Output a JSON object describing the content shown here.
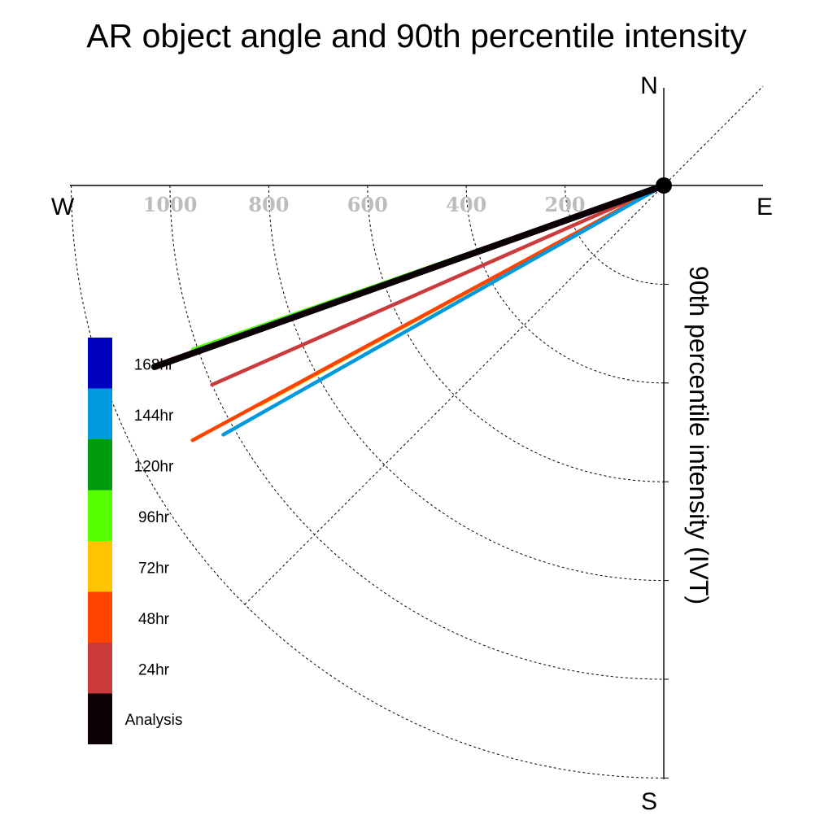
{
  "chart_data": {
    "type": "polar-quadrant",
    "title": "AR object angle and 90th percentile intensity",
    "radial_label": "90th percentile intensity (IVT)",
    "directions": {
      "north": "N",
      "south": "S",
      "east": "E",
      "west": "W"
    },
    "radial_ticks": [
      200,
      400,
      600,
      800,
      1000
    ],
    "radial_max": 1200,
    "grid": true,
    "legend_position": "left",
    "legend": [
      {
        "label": "168hr",
        "color": "#0000c0"
      },
      {
        "label": "144hr",
        "color": "#0099dd"
      },
      {
        "label": "120hr",
        "color": "#009a0e"
      },
      {
        "label": "96hr",
        "color": "#55ff00"
      },
      {
        "label": "72hr",
        "color": "#ffc300"
      },
      {
        "label": "48hr",
        "color": "#ff4400"
      },
      {
        "label": "24hr",
        "color": "#cc3b3b"
      },
      {
        "label": "Analysis",
        "color": "#0a0006"
      }
    ],
    "series": [
      {
        "name": "168hr",
        "color": "#0000c0",
        "angle_deg": 70.5,
        "intensity": 1030
      },
      {
        "name": "96hr",
        "color": "#55ff00",
        "angle_deg": 70.8,
        "intensity": 1010
      },
      {
        "name": "120hr",
        "color": "#009a0e",
        "angle_deg": 70.5,
        "intensity": 1030
      },
      {
        "name": "24hr",
        "color": "#cc3b3b",
        "angle_deg": 66.2,
        "intensity": 1000
      },
      {
        "name": "72hr",
        "color": "#ffc300",
        "angle_deg": 61.5,
        "intensity": 930
      },
      {
        "name": "48hr",
        "color": "#ff4400",
        "angle_deg": 61.6,
        "intensity": 1085
      },
      {
        "name": "144hr",
        "color": "#0099dd",
        "angle_deg": 60.5,
        "intensity": 1025
      },
      {
        "name": "Analysis",
        "color": "#0a0006",
        "angle_deg": 70.4,
        "intensity": 1095
      }
    ]
  }
}
